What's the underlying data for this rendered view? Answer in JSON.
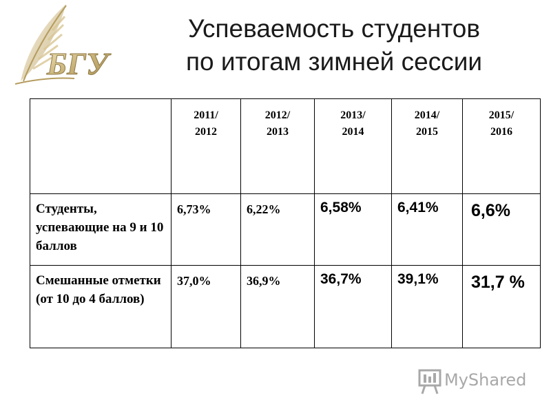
{
  "logo": {
    "text": "БГУ"
  },
  "title": {
    "line1": "Успеваемость студентов",
    "line2": "по итогам зимней сессии"
  },
  "table": {
    "headers": [
      "2011/\n2012",
      "2012/\n2013",
      "2013/\n2014",
      "2014/\n2015",
      "2015/\n2016"
    ],
    "rows": [
      {
        "label": "Студенты, успевающие на 9 и 10 баллов",
        "values": [
          "6,73%",
          "6,22%",
          "6,58%",
          "6,41%",
          "6,6%"
        ]
      },
      {
        "label": "Смешанные отметки (от 10 до 4 баллов)",
        "values": [
          "37,0%",
          "36,9%",
          "36,7%",
          "39,1%",
          "31,7 %"
        ]
      }
    ]
  },
  "watermark": {
    "text": "MyShared"
  }
}
